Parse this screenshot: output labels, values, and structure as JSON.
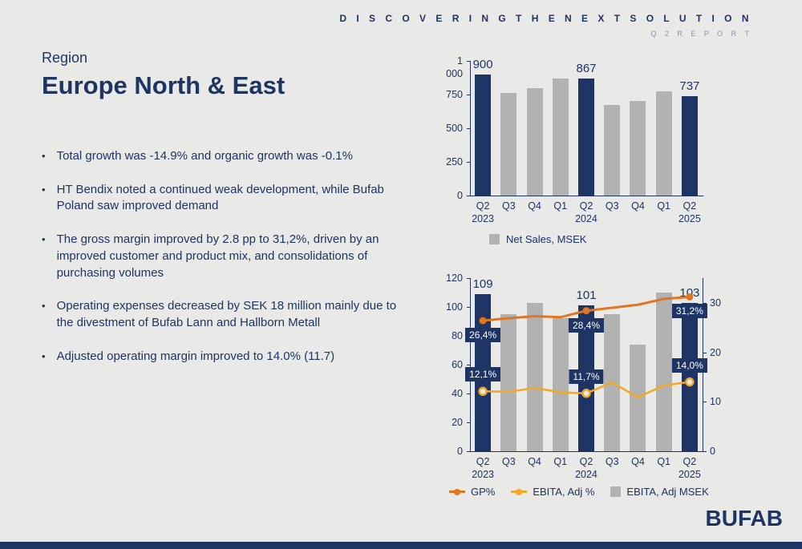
{
  "header": {
    "tagline": "D I S C O V E R I N G   T H E   N E X T   S O L U T I O N",
    "report": "Q 2   R E P O R T"
  },
  "region_label": "Region",
  "title": "Europe North & East",
  "bullets": [
    "Total growth was -14.9% and organic growth was -0.1%",
    "HT Bendix noted a continued weak development, while Bufab Poland saw improved demand",
    "The gross margin improved by 2.8 pp to 31,2%, driven by an improved customer and product mix, and consolidations of purchasing volumes",
    "Operating expenses decreased by SEK 18 million mainly due to the divestment of Bufab Lann and Hallborn Metall",
    "Adjusted operating margin improved to 14.0% (11.7)"
  ],
  "logo": "BUFAB",
  "colors": {
    "navy": "#1e3464",
    "bar_gray": "#b2b2b2",
    "gp_orange": "#e0761f",
    "ebita_orange": "#f5a623",
    "background": "#e9e9e7"
  },
  "chart_data": [
    {
      "type": "bar",
      "name": "net-sales",
      "title": "Net Sales, MSEK",
      "categories": [
        "Q2\n2023",
        "Q3",
        "Q4",
        "Q1",
        "Q2\n2024",
        "Q3",
        "Q4",
        "Q1",
        "Q2\n2025"
      ],
      "values": [
        900,
        760,
        800,
        870,
        867,
        670,
        700,
        775,
        737
      ],
      "highlight_indices": [
        0,
        4,
        8
      ],
      "value_labels": {
        "0": "900",
        "4": "867",
        "8": "737"
      },
      "ylim": [
        0,
        1000
      ],
      "yticks": [
        {
          "v": 0,
          "label": "0"
        },
        {
          "v": 250,
          "label": "250"
        },
        {
          "v": 500,
          "label": "500"
        },
        {
          "v": 750,
          "label": "750"
        },
        {
          "v": 1000,
          "label": "1 000"
        }
      ],
      "legend": [
        "Net Sales, MSEK"
      ]
    },
    {
      "type": "bar+line",
      "name": "ebita",
      "title": "EBITA, Adj",
      "categories": [
        "Q2\n2023",
        "Q3",
        "Q4",
        "Q1",
        "Q2\n2024",
        "Q3",
        "Q4",
        "Q1",
        "Q2\n2025"
      ],
      "bar_series": {
        "name": "EBITA, Adj MSEK",
        "values": [
          109,
          95,
          103,
          92,
          101,
          95,
          74,
          110,
          103
        ],
        "highlight_indices": [
          0,
          4,
          8
        ],
        "value_labels": {
          "0": "109",
          "4": "101",
          "8": "103"
        }
      },
      "left_ylim": [
        0,
        120
      ],
      "yticks": [
        {
          "v": 0,
          "label": "0"
        },
        {
          "v": 20,
          "label": "20"
        },
        {
          "v": 40,
          "label": "40"
        },
        {
          "v": 60,
          "label": "60"
        },
        {
          "v": 80,
          "label": "80"
        },
        {
          "v": 100,
          "label": "100"
        },
        {
          "v": 120,
          "label": "120"
        }
      ],
      "right_ylim": [
        0,
        35
      ],
      "right_yticks": [
        {
          "v": 0,
          "label": "0"
        },
        {
          "v": 10,
          "label": "10"
        },
        {
          "v": 20,
          "label": "20"
        },
        {
          "v": 30,
          "label": "30"
        }
      ],
      "line_series": [
        {
          "name": "GP%",
          "color_key": "gp_orange",
          "values": [
            26.4,
            26.9,
            27.3,
            27.1,
            28.4,
            29.0,
            29.6,
            30.8,
            31.2
          ],
          "marker_indices": [
            0,
            4,
            8
          ],
          "value_labels": {
            "0": "26,4%",
            "4": "28,4%",
            "8": "31,2%"
          },
          "label_pos": "below",
          "marker": "dot",
          "stroke_width": 3
        },
        {
          "name": "EBITA, Adj %",
          "color_key": "ebita_orange",
          "values": [
            12.1,
            12.0,
            12.8,
            11.9,
            11.7,
            13.9,
            10.9,
            13.3,
            14.0
          ],
          "marker_indices": [
            0,
            4,
            8
          ],
          "value_labels": {
            "0": "12,1%",
            "4": "11,7%",
            "8": "14,0%"
          },
          "label_pos": "above",
          "marker": "ring",
          "stroke_width": 2.5
        }
      ],
      "legend": [
        "GP%",
        "EBITA, Adj %",
        "EBITA, Adj MSEK"
      ]
    }
  ]
}
